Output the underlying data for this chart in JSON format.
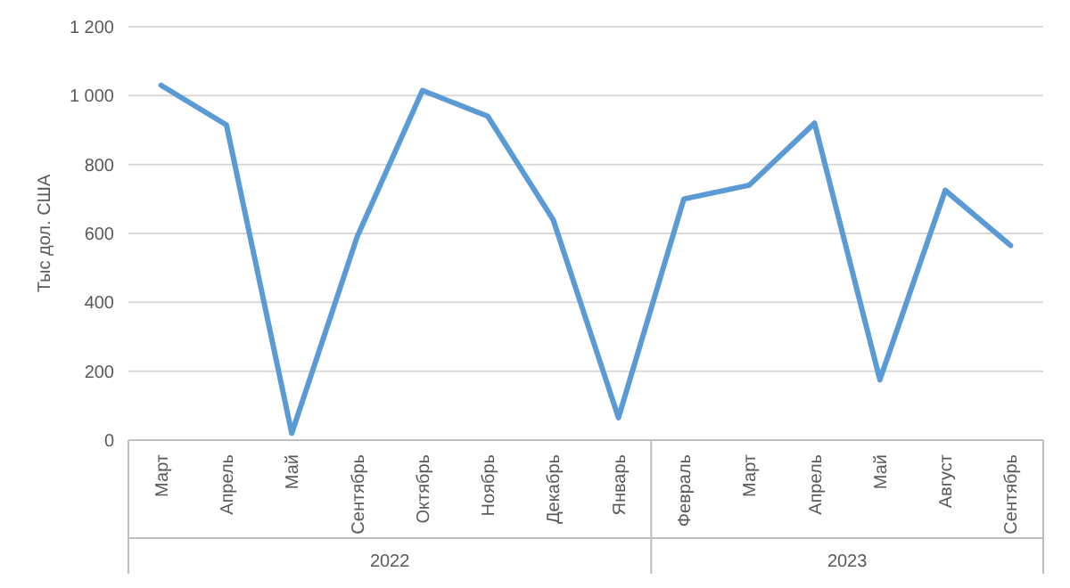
{
  "chart_data": {
    "type": "line",
    "ylabel": "Тыс дол. США",
    "categories": [
      "Март",
      "Апрель",
      "Май",
      "Сентябрь",
      "Октябрь",
      "Ноябрь",
      "Декабрь",
      "Январь",
      "Февраль",
      "Март",
      "Апрель",
      "Май",
      "Август",
      "Сентябрь"
    ],
    "series": [
      {
        "color": "#5b9bd5",
        "values": [
          1030,
          915,
          20,
          590,
          1015,
          940,
          640,
          65,
          700,
          740,
          920,
          175,
          725,
          565
        ]
      }
    ],
    "ylim": [
      0,
      1200
    ],
    "yticks": [
      0,
      200,
      400,
      600,
      800,
      {
        "value": 1000,
        "label": "1 000"
      },
      {
        "value": 1200,
        "label": "1 200"
      }
    ],
    "grid": "y",
    "marker": "none",
    "line_style": "solid",
    "annotations": [
      "2022",
      "2023"
    ]
  }
}
